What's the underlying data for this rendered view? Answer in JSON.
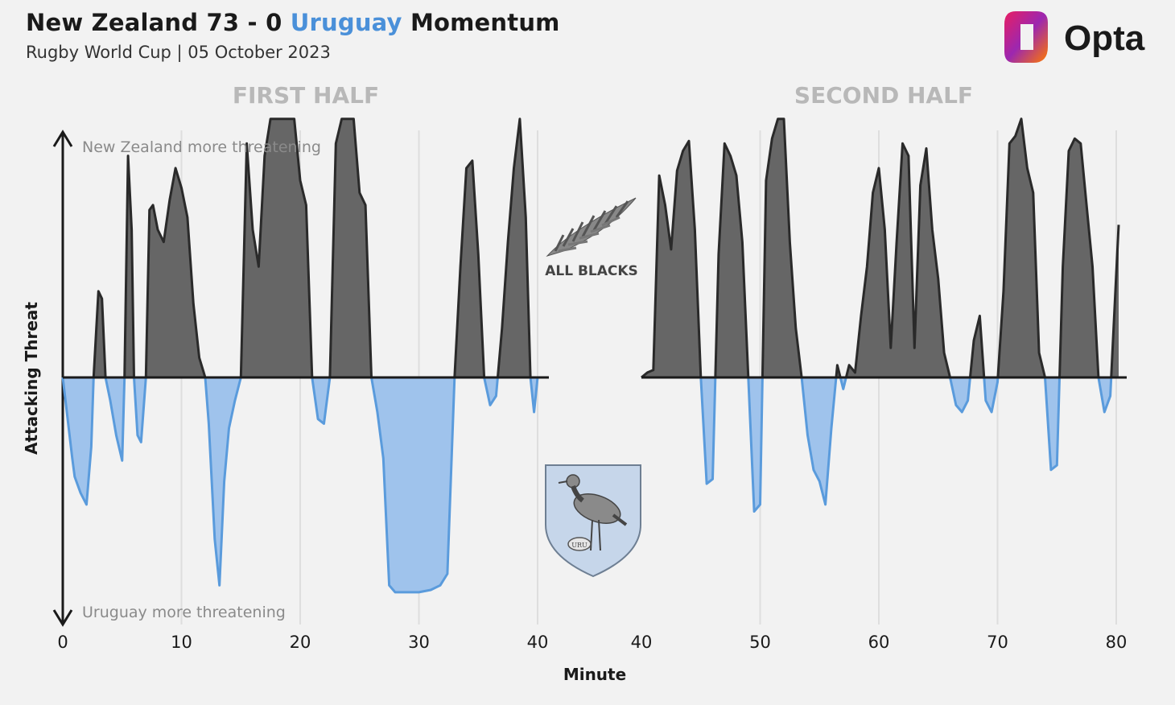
{
  "header": {
    "title_home": "New Zealand 73 - 0",
    "title_away": "Uruguay",
    "title_tail": "Momentum",
    "subtitle": "Rugby World Cup | 05 October 2023"
  },
  "brand": {
    "name": "Opta"
  },
  "crests": {
    "home_text": "ALL BLACKS",
    "away_text": "URU"
  },
  "colors": {
    "home": "#666666",
    "away": "#9fc3ec",
    "away_line": "#5a9bdc",
    "accent_title": "#4a90d9"
  },
  "chart_data": [
    {
      "type": "area",
      "panel": "FIRST HALF",
      "title": "FIRST HALF",
      "xlabel": "Minute",
      "ylabel": "Attacking Threat",
      "annotations": [
        "New Zealand more threatening",
        "Uruguay more threatening"
      ],
      "xlim": [
        0,
        40
      ],
      "ylim": [
        -1,
        1
      ],
      "xticks": [
        0,
        10,
        20,
        30,
        40
      ],
      "grid": true,
      "series": [
        {
          "name": "",
          "x": [
            0,
            0.8,
            1,
            1.5,
            2,
            2.4,
            2.6,
            3,
            3.3,
            3.6,
            4,
            4.5,
            5,
            5.2,
            5.5,
            5.8,
            6,
            6.3,
            6.6,
            7,
            7.3,
            7.6,
            8,
            8.5,
            9,
            9.5,
            10,
            10.5,
            11,
            11.5,
            12,
            12.3,
            12.8,
            13.2,
            13.6,
            14,
            14.5,
            15,
            15.5,
            16,
            16.5,
            17,
            17.5,
            18,
            18.5,
            19,
            19.5,
            20,
            20.5,
            21,
            21.5,
            22,
            22.5,
            23,
            23.5,
            24,
            24.5,
            25,
            25.5,
            26,
            26.5,
            27,
            27.5,
            28,
            28.5,
            29,
            30,
            31,
            31.8,
            32.4,
            33,
            33.5,
            34,
            34.5,
            35,
            35.5,
            36,
            36.5,
            37,
            37.5,
            38,
            38.5,
            39,
            39.4,
            39.7,
            40
          ],
          "y": [
            0,
            -0.35,
            -0.43,
            -0.5,
            -0.55,
            -0.3,
            0,
            0.35,
            0.32,
            0,
            -0.1,
            -0.25,
            -0.36,
            0,
            0.9,
            0.6,
            0,
            -0.25,
            -0.28,
            0,
            0.68,
            0.7,
            0.6,
            0.55,
            0.72,
            0.85,
            0.77,
            0.65,
            0.3,
            0.08,
            0,
            -0.2,
            -0.7,
            -0.9,
            -0.45,
            -0.22,
            -0.1,
            0,
            0.95,
            0.6,
            0.45,
            0.9,
            1.05,
            1.05,
            1.05,
            1.05,
            1.05,
            0.8,
            0.7,
            0,
            -0.18,
            -0.2,
            0,
            0.95,
            1.05,
            1.05,
            1.05,
            0.75,
            0.7,
            0,
            -0.15,
            -0.35,
            -0.9,
            -0.93,
            -0.93,
            -0.93,
            -0.93,
            -0.92,
            -0.9,
            -0.85,
            0,
            0.45,
            0.85,
            0.88,
            0.5,
            0,
            -0.12,
            -0.08,
            0.2,
            0.55,
            0.85,
            1.05,
            0.65,
            0,
            -0.15,
            0
          ]
        }
      ]
    },
    {
      "type": "area",
      "panel": "SECOND HALF",
      "title": "SECOND HALF",
      "xlabel": "Minute",
      "xlim": [
        40,
        80
      ],
      "ylim": [
        -1,
        1
      ],
      "xticks": [
        40,
        50,
        60,
        70,
        80
      ],
      "grid": true,
      "series": [
        {
          "name": "",
          "x": [
            40,
            40.5,
            41,
            41.5,
            42,
            42.5,
            43,
            43.5,
            44,
            44.5,
            45,
            45.5,
            46,
            46.5,
            47,
            47.5,
            48,
            48.5,
            49,
            49.5,
            50,
            50.5,
            51,
            51.5,
            52,
            52.5,
            53,
            53.5,
            54,
            54.5,
            55,
            55.5,
            56,
            56.5,
            57,
            57.5,
            58,
            58.5,
            59,
            59.5,
            60,
            60.5,
            61,
            61.5,
            62,
            62.5,
            63,
            63.5,
            64,
            64.5,
            65,
            65.5,
            66,
            66.5,
            67,
            67.5,
            68,
            68.5,
            69,
            69.5,
            70,
            70.5,
            71,
            71.5,
            72,
            72.5,
            73,
            73.5,
            74,
            74.5,
            75,
            75.5,
            76,
            76.5,
            77,
            77.5,
            78,
            78.5,
            79,
            79.5,
            80,
            80.2
          ],
          "y": [
            0,
            0.02,
            0.03,
            0.82,
            0.7,
            0.52,
            0.84,
            0.92,
            0.96,
            0.6,
            0,
            -0.46,
            -0.44,
            0.5,
            0.95,
            0.9,
            0.82,
            0.55,
            0,
            -0.58,
            -0.55,
            0.8,
            0.97,
            1.05,
            1.05,
            0.55,
            0.2,
            0,
            -0.25,
            -0.4,
            -0.45,
            -0.55,
            -0.22,
            0.05,
            -0.05,
            0.05,
            0.02,
            0.25,
            0.45,
            0.75,
            0.85,
            0.6,
            0.12,
            0.55,
            0.95,
            0.9,
            0.12,
            0.78,
            0.93,
            0.6,
            0.4,
            0.1,
            0,
            -0.12,
            -0.15,
            -0.1,
            0.15,
            0.25,
            -0.1,
            -0.15,
            -0.02,
            0.35,
            0.95,
            0.98,
            1.05,
            0.85,
            0.75,
            0.1,
            0,
            -0.4,
            -0.38,
            0.45,
            0.92,
            0.97,
            0.95,
            0.7,
            0.45,
            0,
            -0.15,
            -0.08,
            0.42,
            0.62
          ]
        }
      ]
    }
  ]
}
